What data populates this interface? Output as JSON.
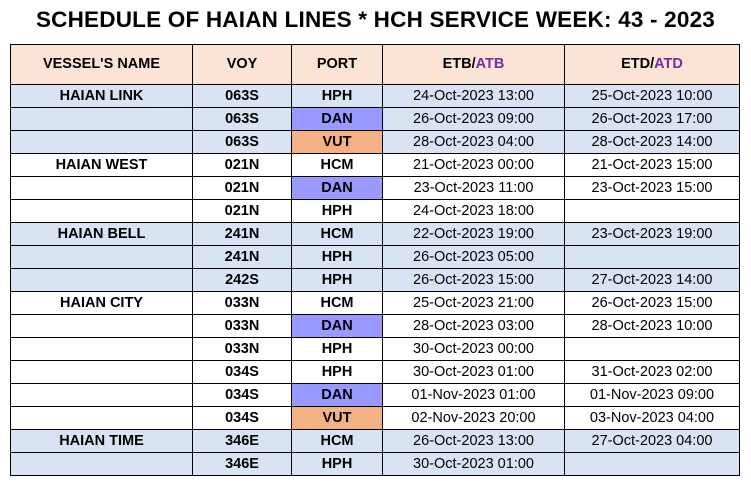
{
  "title": "SCHEDULE OF HAIAN LINES * HCH SERVICE WEEK: 43 - 2023",
  "headers": {
    "vessel": "VESSEL'S NAME",
    "voy": "VOY",
    "port": "PORT",
    "etb": "ETB/",
    "atb": "ATB",
    "etd": "ETD/",
    "atd": "ATD"
  },
  "colors": {
    "header_bg": "#fbe4d5",
    "row_blue": "#dae3f3",
    "dan_highlight": "#9999ff",
    "vut_highlight": "#f4b183",
    "actual_text": "#7030a0"
  },
  "rows": [
    {
      "vessel": "HAIAN LINK",
      "voy": "063S",
      "port": "HPH",
      "etb": "24-Oct-2023 13:00",
      "etd": "25-Oct-2023 10:00"
    },
    {
      "vessel": "",
      "voy": "063S",
      "port": "DAN",
      "etb": "26-Oct-2023 09:00",
      "etd": "26-Oct-2023 17:00"
    },
    {
      "vessel": "",
      "voy": "063S",
      "port": "VUT",
      "etb": "28-Oct-2023 04:00",
      "etd": "28-Oct-2023 14:00"
    },
    {
      "vessel": "HAIAN WEST",
      "voy": "021N",
      "port": "HCM",
      "etb": "21-Oct-2023 00:00",
      "etd": "21-Oct-2023 15:00"
    },
    {
      "vessel": "",
      "voy": "021N",
      "port": "DAN",
      "etb": "23-Oct-2023 11:00",
      "etd": "23-Oct-2023 15:00"
    },
    {
      "vessel": "",
      "voy": "021N",
      "port": "HPH",
      "etb": "24-Oct-2023 18:00",
      "etd": ""
    },
    {
      "vessel": "HAIAN BELL",
      "voy": "241N",
      "port": "HCM",
      "etb": "22-Oct-2023 19:00",
      "etd": "23-Oct-2023 19:00"
    },
    {
      "vessel": "",
      "voy": "241N",
      "port": "HPH",
      "etb": "26-Oct-2023 05:00",
      "etd": ""
    },
    {
      "vessel": "",
      "voy": "242S",
      "port": "HPH",
      "etb": "26-Oct-2023 15:00",
      "etd": "27-Oct-2023 14:00"
    },
    {
      "vessel": "HAIAN CITY",
      "voy": "033N",
      "port": "HCM",
      "etb": "25-Oct-2023 21:00",
      "etd": "26-Oct-2023 15:00"
    },
    {
      "vessel": "",
      "voy": "033N",
      "port": "DAN",
      "etb": "28-Oct-2023 03:00",
      "etd": "28-Oct-2023 10:00"
    },
    {
      "vessel": "",
      "voy": "033N",
      "port": "HPH",
      "etb": "30-Oct-2023 00:00",
      "etd": ""
    },
    {
      "vessel": "",
      "voy": "034S",
      "port": "HPH",
      "etb": "30-Oct-2023 01:00",
      "etd": "31-Oct-2023 02:00"
    },
    {
      "vessel": "",
      "voy": "034S",
      "port": "DAN",
      "etb": "01-Nov-2023 01:00",
      "etd": "01-Nov-2023 09:00"
    },
    {
      "vessel": "",
      "voy": "034S",
      "port": "VUT",
      "etb": "02-Nov-2023 20:00",
      "etd": "03-Nov-2023 04:00"
    },
    {
      "vessel": "HAIAN TIME",
      "voy": "346E",
      "port": "HCM",
      "etb": "26-Oct-2023 13:00",
      "etd": "27-Oct-2023 04:00"
    },
    {
      "vessel": "",
      "voy": "346E",
      "port": "HPH",
      "etb": "30-Oct-2023 01:00",
      "etd": ""
    }
  ]
}
